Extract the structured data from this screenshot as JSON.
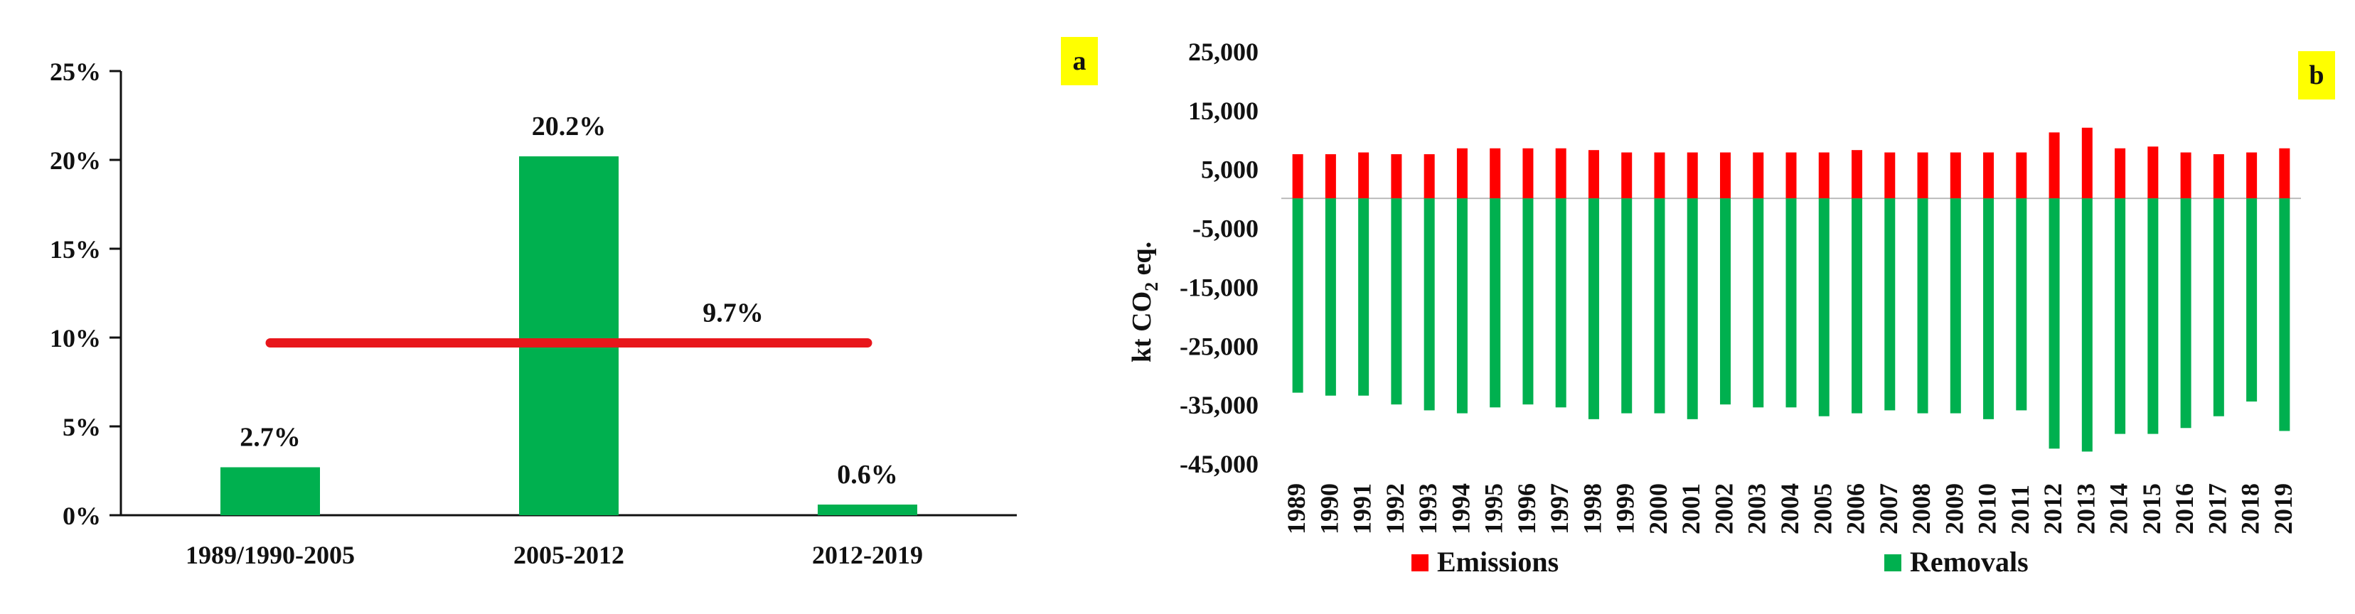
{
  "chart_data": [
    {
      "panel": "a",
      "type": "bar",
      "categories": [
        "1989/1990-2005",
        "2005-2012",
        "2012-2019"
      ],
      "values": [
        2.7,
        20.2,
        0.6
      ],
      "value_labels": [
        "2.7%",
        "20.2%",
        "0.6%"
      ],
      "ylim": [
        0,
        25
      ],
      "yticks": [
        0,
        5,
        10,
        15,
        20,
        25
      ],
      "ytick_labels": [
        "0%",
        "5%",
        "10%",
        "15%",
        "20%",
        "25%"
      ],
      "reference_line": {
        "value": 9.7,
        "label": "9.7%",
        "color": "#e8161b"
      },
      "bar_color": "#00b04f",
      "title": "",
      "xlabel": "",
      "ylabel": ""
    },
    {
      "panel": "b",
      "type": "bar",
      "categories": [
        "1989",
        "1990",
        "1991",
        "1992",
        "1993",
        "1994",
        "1995",
        "1996",
        "1997",
        "1998",
        "1999",
        "2000",
        "2001",
        "2002",
        "2003",
        "2004",
        "2005",
        "2006",
        "2007",
        "2008",
        "2009",
        "2010",
        "2011",
        "2012",
        "2013",
        "2014",
        "2015",
        "2016",
        "2017",
        "2018",
        "2019"
      ],
      "series": [
        {
          "name": "Emissions",
          "color": "#ff0000",
          "values": [
            7500,
            7500,
            7800,
            7500,
            7500,
            8500,
            8500,
            8500,
            8500,
            8200,
            7800,
            7800,
            7800,
            7800,
            7800,
            7800,
            7800,
            8200,
            7800,
            7800,
            7800,
            7800,
            7800,
            11200,
            12000,
            8500,
            8800,
            7800,
            7500,
            7800,
            8500
          ]
        },
        {
          "name": "Removals",
          "color": "#00b04f",
          "values": [
            -33000,
            -33500,
            -33500,
            -35000,
            -36000,
            -36500,
            -35500,
            -35000,
            -35500,
            -37500,
            -36500,
            -36500,
            -37500,
            -35000,
            -35500,
            -35500,
            -37000,
            -36500,
            -36000,
            -36500,
            -36500,
            -37500,
            -36000,
            -42500,
            -43000,
            -40000,
            -40000,
            -39000,
            -37000,
            -34500,
            -39500
          ]
        }
      ],
      "ylim": [
        -45000,
        25000
      ],
      "yticks": [
        -45000,
        -35000,
        -25000,
        -15000,
        -5000,
        5000,
        15000,
        25000
      ],
      "ytick_labels": [
        "-45,000",
        "-35,000",
        "-25,000",
        "-15,000",
        "-5,000",
        "5,000",
        "15,000",
        "25,000"
      ],
      "ylabel": {
        "main": "kt CO",
        "sub": "2",
        "tail": " eq."
      },
      "title": "",
      "xlabel": ""
    }
  ],
  "badges": {
    "a": "a",
    "b": "b",
    "color": "#ffff00"
  }
}
